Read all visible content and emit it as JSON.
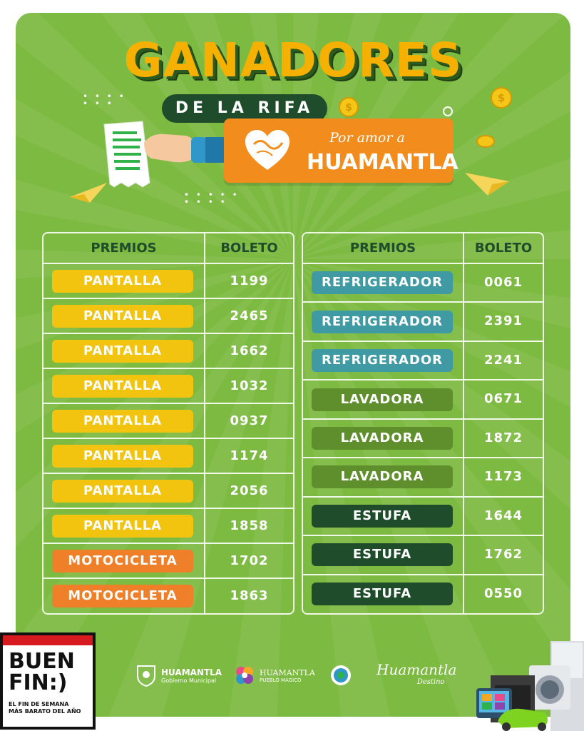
{
  "header": {
    "title": "GANADORES",
    "subtitle": "DE LA RIFA",
    "brand_line1": "Por amor a",
    "brand_line2": "HUAMANTLA"
  },
  "table_left": {
    "col_prize": "PREMIOS",
    "col_ticket": "BOLETO",
    "rows": [
      {
        "prize": "PANTALLA",
        "ticket": "1199",
        "color": "#f2c40f"
      },
      {
        "prize": "PANTALLA",
        "ticket": "2465",
        "color": "#f2c40f"
      },
      {
        "prize": "PANTALLA",
        "ticket": "1662",
        "color": "#f2c40f"
      },
      {
        "prize": "PANTALLA",
        "ticket": "1032",
        "color": "#f2c40f"
      },
      {
        "prize": "PANTALLA",
        "ticket": "0937",
        "color": "#f2c40f"
      },
      {
        "prize": "PANTALLA",
        "ticket": "1174",
        "color": "#f2c40f"
      },
      {
        "prize": "PANTALLA",
        "ticket": "2056",
        "color": "#f2c40f"
      },
      {
        "prize": "PANTALLA",
        "ticket": "1858",
        "color": "#f2c40f"
      },
      {
        "prize": "MOTOCICLETA",
        "ticket": "1702",
        "color": "#f07f2a"
      },
      {
        "prize": "MOTOCICLETA",
        "ticket": "1863",
        "color": "#f07f2a"
      }
    ]
  },
  "table_right": {
    "col_prize": "PREMIOS",
    "col_ticket": "BOLETO",
    "rows": [
      {
        "prize": "REFRIGERADOR",
        "ticket": "0061",
        "color": "#3f9aa3"
      },
      {
        "prize": "REFRIGERADOR",
        "ticket": "2391",
        "color": "#3f9aa3"
      },
      {
        "prize": "REFRIGERADOR",
        "ticket": "2241",
        "color": "#3f9aa3"
      },
      {
        "prize": "LAVADORA",
        "ticket": "0671",
        "color": "#5f8f2c"
      },
      {
        "prize": "LAVADORA",
        "ticket": "1872",
        "color": "#5f8f2c"
      },
      {
        "prize": "LAVADORA",
        "ticket": "1173",
        "color": "#5f8f2c"
      },
      {
        "prize": "ESTUFA",
        "ticket": "1644",
        "color": "#1f4d2b"
      },
      {
        "prize": "ESTUFA",
        "ticket": "1762",
        "color": "#1f4d2b"
      },
      {
        "prize": "ESTUFA",
        "ticket": "0550",
        "color": "#1f4d2b"
      }
    ]
  },
  "footer": {
    "logo1_title": "HUAMANTLA",
    "logo1_sub": "Gobierno Municipal",
    "logo2_title": "HUAMANTLA",
    "logo2_sub": "PUEBLO MÁGICO",
    "logo4_title": "Huamantla",
    "logo4_sub": "Destino"
  },
  "buen_fin": {
    "line1": "BUEN",
    "line2": "FIN:)",
    "tagline1": "EL FIN DE SEMANA",
    "tagline2": "MÁS BARATO DEL AÑO"
  }
}
